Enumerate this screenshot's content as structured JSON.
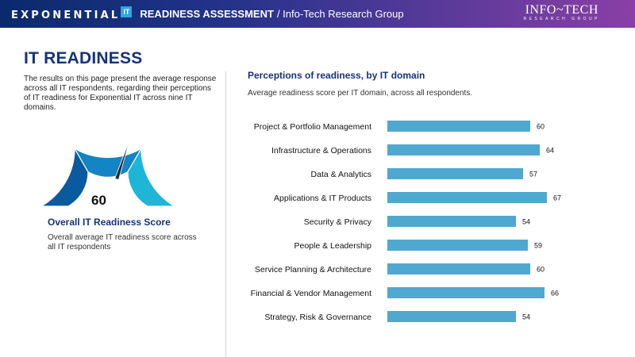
{
  "header": {
    "brand_word": "EXPONENTIAL",
    "brand_badge": "IT",
    "title": "READINESS ASSESSMENT",
    "subtitle": "/ Info-Tech Research Group",
    "logo_main": "INFO~TECH",
    "logo_sub": "RESEARCH GROUP"
  },
  "page_title": "IT READINESS",
  "intro_text": "The results on this page present the average response across all IT respondents, regarding their perceptions of IT readiness for Exponential IT across nine IT domains.",
  "gauge": {
    "value": 60,
    "max": 100,
    "label": "60",
    "title": "Overall IT Readiness Score",
    "description": "Overall average IT readiness score across all IT respondents",
    "colors": [
      "#0a5aa0",
      "#1384c4",
      "#1fb5d6"
    ]
  },
  "chart_data": {
    "type": "bar",
    "orientation": "horizontal",
    "title": "Perceptions of readiness, by IT domain",
    "subtitle": "Average readiness score per IT domain, across all respondents.",
    "categories": [
      "Project & Portfolio Management",
      "Infrastructure & Operations",
      "Data & Analytics",
      "Applications & IT Products",
      "Security & Privacy",
      "People & Leadership",
      "Service Planning & Architecture",
      "Financial & Vendor Management",
      "Strategy, Risk & Governance"
    ],
    "values": [
      60,
      64,
      57,
      67,
      54,
      59,
      60,
      66,
      54
    ],
    "xlim": [
      0,
      100
    ],
    "data_labels": true,
    "grid": false,
    "bar_color": "#4fa8cf"
  }
}
